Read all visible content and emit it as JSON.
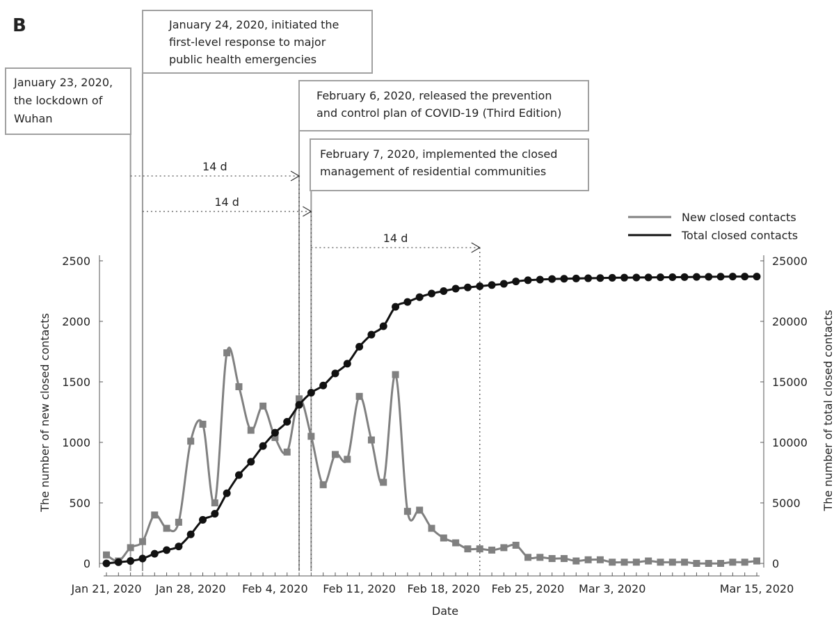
{
  "panel_label": "B",
  "chart_data": {
    "type": "line",
    "xlabel": "Date",
    "ylabel_left": "The number of new closed contacts",
    "ylabel_right": "The number of total closed contacts",
    "ylim_left": [
      0,
      2500
    ],
    "ylim_right": [
      0,
      25000
    ],
    "xlim": [
      "2020-01-21",
      "2020-03-15"
    ],
    "x_ticks": [
      "Jan 21, 2020",
      "Jan 28, 2020",
      "Feb 4, 2020",
      "Feb 11, 2020",
      "Feb 18, 2020",
      "Feb 25, 2020",
      "Mar 3, 2020",
      "Mar 15, 2020"
    ],
    "y_ticks_left": [
      0,
      500,
      1000,
      1500,
      2000,
      2500
    ],
    "y_ticks_right": [
      0,
      5000,
      10000,
      15000,
      20000,
      25000
    ],
    "grid": false,
    "legend_position": "top-right",
    "x": [
      "2020-01-21",
      "2020-01-22",
      "2020-01-23",
      "2020-01-24",
      "2020-01-25",
      "2020-01-26",
      "2020-01-27",
      "2020-01-28",
      "2020-01-29",
      "2020-01-30",
      "2020-01-31",
      "2020-02-01",
      "2020-02-02",
      "2020-02-03",
      "2020-02-04",
      "2020-02-05",
      "2020-02-06",
      "2020-02-07",
      "2020-02-08",
      "2020-02-09",
      "2020-02-10",
      "2020-02-11",
      "2020-02-12",
      "2020-02-13",
      "2020-02-14",
      "2020-02-15",
      "2020-02-16",
      "2020-02-17",
      "2020-02-18",
      "2020-02-19",
      "2020-02-20",
      "2020-02-21",
      "2020-02-22",
      "2020-02-23",
      "2020-02-24",
      "2020-02-25",
      "2020-02-26",
      "2020-02-27",
      "2020-02-28",
      "2020-02-29",
      "2020-03-01",
      "2020-03-02",
      "2020-03-03",
      "2020-03-04",
      "2020-03-05",
      "2020-03-06",
      "2020-03-07",
      "2020-03-08",
      "2020-03-09",
      "2020-03-10",
      "2020-03-11",
      "2020-03-12",
      "2020-03-13",
      "2020-03-14",
      "2020-03-15"
    ],
    "series": [
      {
        "name": "New closed contacts",
        "color": "#808080",
        "marker": "square",
        "axis": "left",
        "values": [
          70,
          20,
          130,
          180,
          400,
          290,
          340,
          1010,
          1150,
          500,
          1740,
          1460,
          1100,
          1300,
          1040,
          920,
          1360,
          1050,
          650,
          900,
          860,
          1380,
          1020,
          670,
          1560,
          430,
          440,
          290,
          210,
          170,
          120,
          120,
          110,
          130,
          150,
          50,
          50,
          40,
          40,
          20,
          30,
          30,
          10,
          10,
          10,
          20,
          10,
          10,
          10,
          0,
          0,
          0,
          10,
          10,
          20
        ]
      },
      {
        "name": "Total closed contacts",
        "color": "#111111",
        "marker": "circle",
        "axis": "right",
        "values": [
          0,
          100,
          200,
          400,
          800,
          1100,
          1400,
          2400,
          3600,
          4100,
          5800,
          7300,
          8400,
          9700,
          10800,
          11700,
          13100,
          14100,
          14700,
          15700,
          16500,
          17900,
          18900,
          19600,
          21200,
          21600,
          22000,
          22300,
          22500,
          22700,
          22800,
          22900,
          23000,
          23100,
          23300,
          23400,
          23450,
          23500,
          23520,
          23540,
          23560,
          23580,
          23600,
          23610,
          23620,
          23630,
          23640,
          23650,
          23660,
          23670,
          23680,
          23690,
          23700,
          23700,
          23700
        ]
      }
    ],
    "events": [
      {
        "date": "2020-01-23",
        "text": [
          "January 23, 2020,",
          "the lockdown of",
          "Wuhan"
        ]
      },
      {
        "date": "2020-01-24",
        "text": [
          "January 24, 2020, initiated the",
          "first-level response to major",
          "public health emergencies"
        ]
      },
      {
        "date": "2020-02-06",
        "text": [
          "February 6, 2020, released the prevention",
          "and control plan of COVID-19 (Third Edition)"
        ]
      },
      {
        "date": "2020-02-07",
        "text": [
          "February 7, 2020, implemented the closed",
          "management of residential communities"
        ]
      }
    ],
    "intervals": [
      {
        "from": "2020-01-23",
        "to": "2020-02-06",
        "label": "14 d"
      },
      {
        "from": "2020-01-24",
        "to": "2020-02-07",
        "label": "14 d"
      },
      {
        "from": "2020-02-07",
        "to": "2020-02-21",
        "label": "14 d"
      }
    ]
  }
}
